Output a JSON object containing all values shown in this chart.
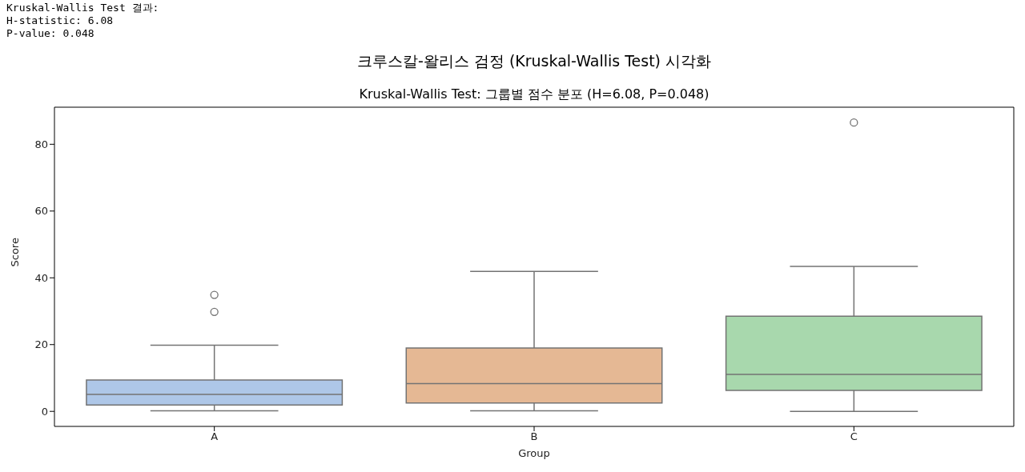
{
  "chart_data": {
    "type": "box",
    "title": "크루스칼-왈리스 검정 (Kruskal-Wallis Test) 시각화",
    "subtitle": "Kruskal-Wallis Test: 그룹별 점수 분포 (H=6.08, P=0.048)",
    "xlabel": "Group",
    "ylabel": "Score",
    "annotations": [
      "Kruskal-Wallis Test 결과:",
      "H-statistic: 6.08",
      "P-value: 0.048"
    ],
    "categories": [
      "A",
      "B",
      "C"
    ],
    "colors": [
      "#aec7e8",
      "#e5b894",
      "#a8d8ad"
    ],
    "boxes": [
      {
        "low": 0.2,
        "q1": 1.9,
        "median": 5.1,
        "q3": 9.4,
        "high": 19.8,
        "outliers": [
          29.8,
          34.9
        ]
      },
      {
        "low": 0.2,
        "q1": 2.5,
        "median": 8.3,
        "q3": 19.0,
        "high": 41.9
      },
      {
        "low": 0,
        "q1": 6.3,
        "median": 11.1,
        "q3": 28.5,
        "high": 43.4,
        "outliers": [
          86.5
        ]
      }
    ],
    "ylim": [
      -4.5,
      91.1
    ],
    "yticks": [
      0,
      20,
      40,
      60,
      80
    ]
  }
}
